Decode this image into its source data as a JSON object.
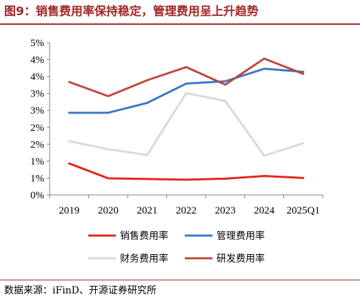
{
  "header": {
    "title": "图9：销售费用率保持稳定，管理费用呈上升趋势"
  },
  "footer": {
    "source": "数据来源：iFinD、开源证券研究所"
  },
  "chart_data": {
    "type": "line",
    "categories": [
      "2019",
      "2020",
      "2021",
      "2022",
      "2023",
      "2024",
      "2025Q1"
    ],
    "ytick_labels": [
      "0%",
      "1%",
      "1%",
      "2%",
      "2%",
      "3%",
      "3%",
      "4%",
      "4%",
      "5%"
    ],
    "ylim": [
      0,
      4.5
    ],
    "grid": false,
    "legend_position": "bottom",
    "series": [
      {
        "name": "销售费用率",
        "color": "#e8221b",
        "values": [
          0.93,
          0.49,
          0.47,
          0.45,
          0.48,
          0.56,
          0.5
        ]
      },
      {
        "name": "管理费用率",
        "color": "#3a77c8",
        "values": [
          2.43,
          2.43,
          2.72,
          3.29,
          3.36,
          3.73,
          3.64
        ]
      },
      {
        "name": "财务费用率",
        "color": "#d9d9d9",
        "values": [
          1.59,
          1.35,
          1.18,
          3.01,
          2.78,
          1.16,
          1.53
        ]
      },
      {
        "name": "研发费用率",
        "color": "#c0463a",
        "values": [
          3.34,
          2.92,
          3.39,
          3.78,
          3.26,
          4.03,
          3.58
        ]
      }
    ]
  }
}
